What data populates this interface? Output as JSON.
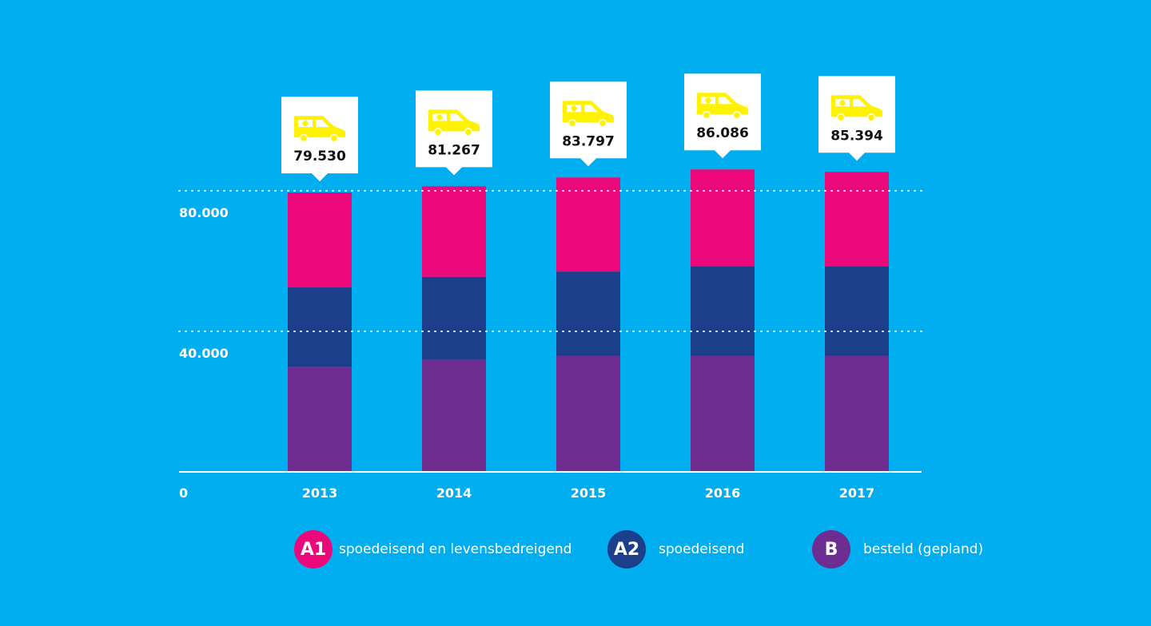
{
  "chart_data": {
    "type": "bar",
    "stacked": true,
    "categories": [
      "2013",
      "2014",
      "2015",
      "2016",
      "2017"
    ],
    "series": [
      {
        "key": "B",
        "name": "besteld (gepland)",
        "color": "#6f2c91",
        "values": [
          30000,
          32000,
          33000,
          33000,
          33000
        ]
      },
      {
        "key": "A2",
        "name": "spoedeisend",
        "color": "#1b3f8b",
        "values": [
          22500,
          23500,
          24000,
          25500,
          25500
        ]
      },
      {
        "key": "A1",
        "name": "spoedeisend en levensbedreigend",
        "color": "#ec087b",
        "values": [
          27030,
          25767,
          26797,
          27586,
          26894
        ]
      }
    ],
    "totals": [
      {
        "year": "2013",
        "value": 79530,
        "label": "79.530"
      },
      {
        "year": "2014",
        "value": 81267,
        "label": "81.267"
      },
      {
        "year": "2015",
        "value": 83797,
        "label": "83.797"
      },
      {
        "year": "2016",
        "value": 86086,
        "label": "86.086"
      },
      {
        "year": "2017",
        "value": 85394,
        "label": "85.394"
      }
    ],
    "yticks": [
      {
        "value": 0,
        "label": "0"
      },
      {
        "value": 40000,
        "label": "40.000"
      },
      {
        "value": 80000,
        "label": "80.000"
      }
    ],
    "ylim": [
      0,
      90000
    ],
    "gridlines": "dotted",
    "icon": "ambulance-icon",
    "icon_color": "#fff200"
  },
  "legend": [
    {
      "key": "A1",
      "label": "spoedeisend en levensbedreigend",
      "color": "#ec087b"
    },
    {
      "key": "A2",
      "label": "spoedeisend",
      "color": "#1b3f8b"
    },
    {
      "key": "B",
      "label": "besteld (gepland)",
      "color": "#6f2c91"
    }
  ]
}
